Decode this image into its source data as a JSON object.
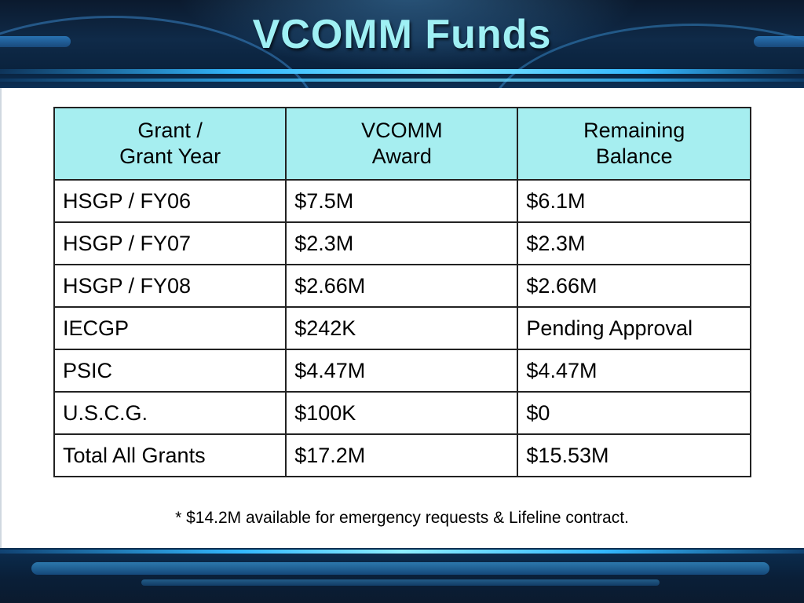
{
  "slide": {
    "title": "VCOMM Funds",
    "note": "* $14.2M available for emergency requests & Lifeline contract."
  },
  "table": {
    "headers": [
      {
        "line1": "Grant /",
        "line2": "Grant Year"
      },
      {
        "line1": "VCOMM",
        "line2": "Award"
      },
      {
        "line1": "Remaining",
        "line2": "Balance"
      }
    ],
    "rows": [
      {
        "grant": "HSGP / FY06",
        "award": "$7.5M",
        "balance": "$6.1M"
      },
      {
        "grant": "HSGP / FY07",
        "award": "$2.3M",
        "balance": "$2.3M"
      },
      {
        "grant": "HSGP / FY08",
        "award": "$2.66M",
        "balance": "$2.66M"
      },
      {
        "grant": "IECGP",
        "award": "$242K",
        "balance": "Pending Approval"
      },
      {
        "grant": "PSIC",
        "award": "$4.47M",
        "balance": "$4.47M"
      },
      {
        "grant": "U.S.C.G.",
        "award": "$100K",
        "balance": "$0"
      },
      {
        "grant": "Total All Grants",
        "award": "$17.2M",
        "balance": "$15.53M"
      }
    ]
  },
  "colors": {
    "title_text": "#9ff0f4",
    "header_fill": "#a6eef0",
    "band_dark": "#0f2a48",
    "band_glow": "#33b8ff"
  }
}
